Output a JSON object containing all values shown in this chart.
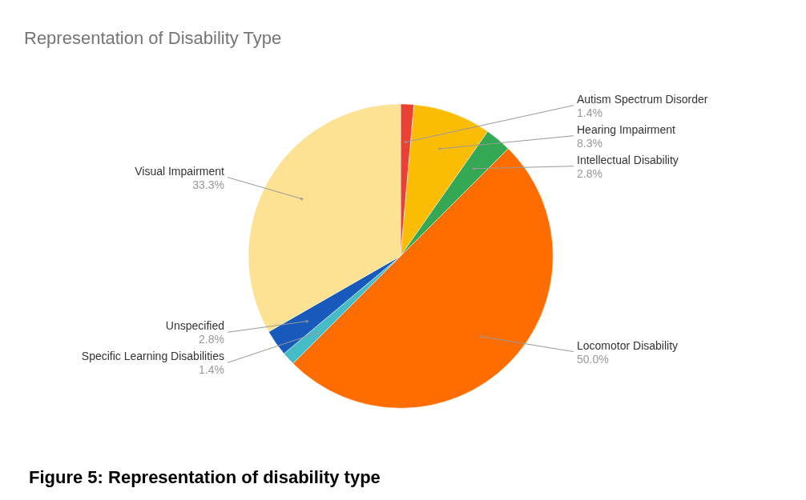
{
  "chart_data": {
    "type": "pie",
    "title": "Representation of Disability Type",
    "categories": [
      "Autism Spectrum Disorder",
      "Hearing Impairment",
      "Intellectual Disability",
      "Locomotor Disability",
      "Specific Learning Disabilities",
      "Unspecified",
      "Visual Impairment"
    ],
    "values": [
      1.4,
      8.3,
      2.8,
      50.0,
      1.4,
      2.8,
      33.3
    ],
    "value_labels": [
      "1.4%",
      "8.3%",
      "2.8%",
      "50.0%",
      "1.4%",
      "2.8%",
      "33.3%"
    ],
    "colors": [
      "#e94235",
      "#fbbc04",
      "#34a853",
      "#ff6d01",
      "#46bdc6",
      "#185abc",
      "#fde293"
    ],
    "annotations": [
      "Figure 5: Representation of disability type"
    ]
  }
}
